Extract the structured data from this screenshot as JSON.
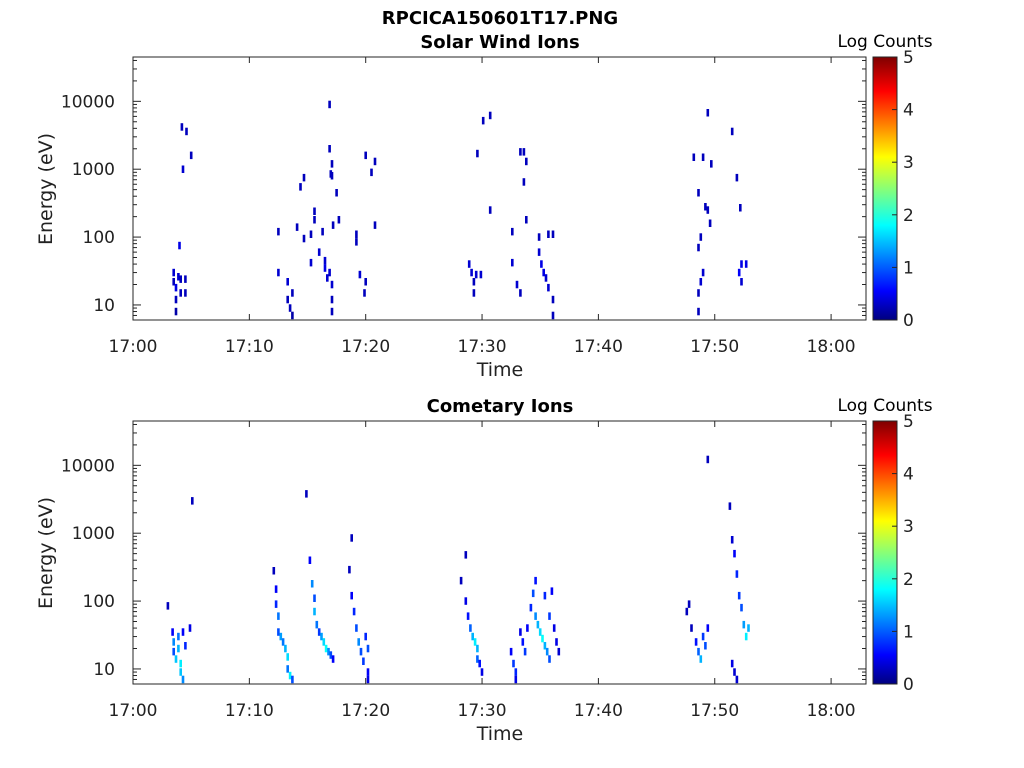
{
  "figure_title": "RPCICA150601T17.PNG",
  "chart_data": [
    {
      "type": "heatmap",
      "title": "Solar Wind Ions",
      "xlabel": "Time",
      "ylabel": "Energy (eV)",
      "x_ticks": [
        "17:00",
        "17:10",
        "17:20",
        "17:30",
        "17:40",
        "17:50",
        "18:00"
      ],
      "y_ticks": [
        "10",
        "100",
        "1000",
        "10000"
      ],
      "y_scale": "log",
      "ylim": [
        6,
        45000
      ],
      "xlim_minutes": [
        0,
        63
      ],
      "colorbar": {
        "label": "Log Counts",
        "ticks": [
          "0",
          "1",
          "2",
          "3",
          "4",
          "5"
        ],
        "range": [
          0,
          5
        ],
        "colormap": "jet"
      },
      "cells": [
        {
          "t": 3.5,
          "e": 30,
          "v": 0.4
        },
        {
          "t": 3.5,
          "e": 22,
          "v": 0.3
        },
        {
          "t": 3.7,
          "e": 18,
          "v": 0.5
        },
        {
          "t": 3.7,
          "e": 12,
          "v": 0.3
        },
        {
          "t": 3.7,
          "e": 8,
          "v": 0.2
        },
        {
          "t": 3.9,
          "e": 26,
          "v": 0.4
        },
        {
          "t": 4.1,
          "e": 24,
          "v": 0.3
        },
        {
          "t": 4.1,
          "e": 15,
          "v": 0.3
        },
        {
          "t": 4.5,
          "e": 24,
          "v": 0.3
        },
        {
          "t": 4.5,
          "e": 15,
          "v": 0.3
        },
        {
          "t": 4.0,
          "e": 75,
          "v": 0.5
        },
        {
          "t": 4.2,
          "e": 4200,
          "v": 0.3
        },
        {
          "t": 4.6,
          "e": 3600,
          "v": 0.3
        },
        {
          "t": 5.0,
          "e": 1600,
          "v": 0.3
        },
        {
          "t": 4.3,
          "e": 1000,
          "v": 0.4
        },
        {
          "t": 12.5,
          "e": 120,
          "v": 0.3
        },
        {
          "t": 12.5,
          "e": 30,
          "v": 0.4
        },
        {
          "t": 13.3,
          "e": 22,
          "v": 0.4
        },
        {
          "t": 13.3,
          "e": 12,
          "v": 0.3
        },
        {
          "t": 13.5,
          "e": 9,
          "v": 0.3
        },
        {
          "t": 13.7,
          "e": 15,
          "v": 0.3
        },
        {
          "t": 13.7,
          "e": 7,
          "v": 0.2
        },
        {
          "t": 14.1,
          "e": 140,
          "v": 0.3
        },
        {
          "t": 14.4,
          "e": 550,
          "v": 0.3
        },
        {
          "t": 14.7,
          "e": 750,
          "v": 0.3
        },
        {
          "t": 14.7,
          "e": 95,
          "v": 0.3
        },
        {
          "t": 15.3,
          "e": 110,
          "v": 0.3
        },
        {
          "t": 15.3,
          "e": 42,
          "v": 0.4
        },
        {
          "t": 15.6,
          "e": 180,
          "v": 0.3
        },
        {
          "t": 15.6,
          "e": 240,
          "v": 0.3
        },
        {
          "t": 16.0,
          "e": 60,
          "v": 0.4
        },
        {
          "t": 16.3,
          "e": 120,
          "v": 0.3
        },
        {
          "t": 16.5,
          "e": 45,
          "v": 0.4
        },
        {
          "t": 16.5,
          "e": 35,
          "v": 0.5
        },
        {
          "t": 16.7,
          "e": 25,
          "v": 0.4
        },
        {
          "t": 16.9,
          "e": 30,
          "v": 0.4
        },
        {
          "t": 17.1,
          "e": 20,
          "v": 0.4
        },
        {
          "t": 17.1,
          "e": 12,
          "v": 0.3
        },
        {
          "t": 17.1,
          "e": 8,
          "v": 0.3
        },
        {
          "t": 16.9,
          "e": 9000,
          "v": 0.3
        },
        {
          "t": 16.9,
          "e": 2000,
          "v": 0.3
        },
        {
          "t": 17.1,
          "e": 1200,
          "v": 0.3
        },
        {
          "t": 17.0,
          "e": 850,
          "v": 0.3
        },
        {
          "t": 17.1,
          "e": 800,
          "v": 0.3
        },
        {
          "t": 17.5,
          "e": 450,
          "v": 0.3
        },
        {
          "t": 17.2,
          "e": 150,
          "v": 0.3
        },
        {
          "t": 17.7,
          "e": 180,
          "v": 0.3
        },
        {
          "t": 19.2,
          "e": 110,
          "v": 0.3
        },
        {
          "t": 19.2,
          "e": 85,
          "v": 0.3
        },
        {
          "t": 19.5,
          "e": 28,
          "v": 0.4
        },
        {
          "t": 20.0,
          "e": 22,
          "v": 0.3
        },
        {
          "t": 19.9,
          "e": 15,
          "v": 0.3
        },
        {
          "t": 20.0,
          "e": 1600,
          "v": 0.3
        },
        {
          "t": 20.5,
          "e": 900,
          "v": 0.3
        },
        {
          "t": 20.8,
          "e": 1300,
          "v": 0.3
        },
        {
          "t": 20.8,
          "e": 150,
          "v": 0.3
        },
        {
          "t": 28.9,
          "e": 40,
          "v": 0.4
        },
        {
          "t": 29.1,
          "e": 30,
          "v": 0.4
        },
        {
          "t": 29.3,
          "e": 22,
          "v": 0.3
        },
        {
          "t": 29.3,
          "e": 15,
          "v": 0.3
        },
        {
          "t": 29.5,
          "e": 28,
          "v": 0.4
        },
        {
          "t": 29.9,
          "e": 28,
          "v": 0.4
        },
        {
          "t": 29.6,
          "e": 1700,
          "v": 0.3
        },
        {
          "t": 30.1,
          "e": 5200,
          "v": 0.3
        },
        {
          "t": 30.7,
          "e": 6200,
          "v": 0.3
        },
        {
          "t": 30.7,
          "e": 250,
          "v": 0.3
        },
        {
          "t": 32.6,
          "e": 120,
          "v": 0.3
        },
        {
          "t": 32.6,
          "e": 42,
          "v": 0.4
        },
        {
          "t": 33.0,
          "e": 20,
          "v": 0.4
        },
        {
          "t": 33.3,
          "e": 15,
          "v": 0.3
        },
        {
          "t": 33.3,
          "e": 1800,
          "v": 0.3
        },
        {
          "t": 33.6,
          "e": 1800,
          "v": 0.3
        },
        {
          "t": 33.6,
          "e": 650,
          "v": 0.3
        },
        {
          "t": 33.8,
          "e": 1300,
          "v": 0.3
        },
        {
          "t": 33.8,
          "e": 180,
          "v": 0.3
        },
        {
          "t": 34.9,
          "e": 100,
          "v": 0.3
        },
        {
          "t": 34.9,
          "e": 60,
          "v": 0.4
        },
        {
          "t": 35.1,
          "e": 40,
          "v": 0.5
        },
        {
          "t": 35.3,
          "e": 30,
          "v": 0.5
        },
        {
          "t": 35.5,
          "e": 25,
          "v": 0.4
        },
        {
          "t": 35.7,
          "e": 18,
          "v": 0.4
        },
        {
          "t": 35.7,
          "e": 110,
          "v": 0.3
        },
        {
          "t": 36.1,
          "e": 110,
          "v": 0.3
        },
        {
          "t": 36.1,
          "e": 12,
          "v": 0.3
        },
        {
          "t": 36.1,
          "e": 7,
          "v": 0.3
        },
        {
          "t": 48.2,
          "e": 1500,
          "v": 0.3
        },
        {
          "t": 48.6,
          "e": 450,
          "v": 0.3
        },
        {
          "t": 48.6,
          "e": 70,
          "v": 0.3
        },
        {
          "t": 48.8,
          "e": 100,
          "v": 0.3
        },
        {
          "t": 49.0,
          "e": 30,
          "v": 0.4
        },
        {
          "t": 48.8,
          "e": 22,
          "v": 0.4
        },
        {
          "t": 48.6,
          "e": 15,
          "v": 0.3
        },
        {
          "t": 48.6,
          "e": 8,
          "v": 0.3
        },
        {
          "t": 49.0,
          "e": 1500,
          "v": 0.3
        },
        {
          "t": 49.4,
          "e": 6800,
          "v": 0.3
        },
        {
          "t": 49.2,
          "e": 280,
          "v": 0.3
        },
        {
          "t": 49.4,
          "e": 250,
          "v": 0.3
        },
        {
          "t": 49.6,
          "e": 160,
          "v": 0.3
        },
        {
          "t": 49.7,
          "e": 1200,
          "v": 0.3
        },
        {
          "t": 51.5,
          "e": 3600,
          "v": 0.3
        },
        {
          "t": 51.9,
          "e": 750,
          "v": 0.3
        },
        {
          "t": 52.2,
          "e": 270,
          "v": 0.3
        },
        {
          "t": 52.1,
          "e": 30,
          "v": 0.6
        },
        {
          "t": 52.3,
          "e": 40,
          "v": 0.5
        },
        {
          "t": 52.7,
          "e": 40,
          "v": 0.5
        },
        {
          "t": 52.3,
          "e": 22,
          "v": 0.4
        }
      ]
    },
    {
      "type": "heatmap",
      "title": "Cometary Ions",
      "xlabel": "Time",
      "ylabel": "Energy (eV)",
      "x_ticks": [
        "17:00",
        "17:10",
        "17:20",
        "17:30",
        "17:40",
        "17:50",
        "18:00"
      ],
      "y_ticks": [
        "10",
        "100",
        "1000",
        "10000"
      ],
      "y_scale": "log",
      "ylim": [
        6,
        45000
      ],
      "xlim_minutes": [
        0,
        63
      ],
      "colorbar": {
        "label": "Log Counts",
        "ticks": [
          "0",
          "1",
          "2",
          "3",
          "4",
          "5"
        ],
        "range": [
          0,
          5
        ],
        "colormap": "jet"
      },
      "cells": [
        {
          "t": 3.0,
          "e": 85,
          "v": 0.3
        },
        {
          "t": 3.4,
          "e": 35,
          "v": 0.6
        },
        {
          "t": 3.5,
          "e": 25,
          "v": 1.3
        },
        {
          "t": 3.5,
          "e": 18,
          "v": 1.0
        },
        {
          "t": 3.7,
          "e": 14,
          "v": 1.6
        },
        {
          "t": 3.9,
          "e": 30,
          "v": 1.2
        },
        {
          "t": 3.9,
          "e": 20,
          "v": 1.5
        },
        {
          "t": 4.1,
          "e": 12,
          "v": 1.8
        },
        {
          "t": 4.1,
          "e": 9,
          "v": 1.6
        },
        {
          "t": 4.3,
          "e": 7,
          "v": 1.3
        },
        {
          "t": 4.3,
          "e": 35,
          "v": 0.6
        },
        {
          "t": 4.5,
          "e": 22,
          "v": 0.8
        },
        {
          "t": 4.9,
          "e": 40,
          "v": 0.5
        },
        {
          "t": 5.1,
          "e": 3000,
          "v": 0.3
        },
        {
          "t": 12.1,
          "e": 280,
          "v": 0.3
        },
        {
          "t": 12.3,
          "e": 150,
          "v": 0.6
        },
        {
          "t": 12.3,
          "e": 90,
          "v": 0.8
        },
        {
          "t": 12.5,
          "e": 60,
          "v": 1.2
        },
        {
          "t": 12.5,
          "e": 35,
          "v": 1.0
        },
        {
          "t": 12.7,
          "e": 30,
          "v": 1.4
        },
        {
          "t": 12.9,
          "e": 25,
          "v": 1.2
        },
        {
          "t": 13.1,
          "e": 20,
          "v": 1.5
        },
        {
          "t": 13.3,
          "e": 15,
          "v": 1.7
        },
        {
          "t": 13.3,
          "e": 10,
          "v": 1.2
        },
        {
          "t": 13.5,
          "e": 8,
          "v": 1.8
        },
        {
          "t": 13.7,
          "e": 7,
          "v": 1.0
        },
        {
          "t": 14.9,
          "e": 3800,
          "v": 0.3
        },
        {
          "t": 15.2,
          "e": 400,
          "v": 0.6
        },
        {
          "t": 15.4,
          "e": 180,
          "v": 1.3
        },
        {
          "t": 15.6,
          "e": 110,
          "v": 1.0
        },
        {
          "t": 15.6,
          "e": 70,
          "v": 1.5
        },
        {
          "t": 15.8,
          "e": 45,
          "v": 1.2
        },
        {
          "t": 16.0,
          "e": 35,
          "v": 0.9
        },
        {
          "t": 16.2,
          "e": 30,
          "v": 1.4
        },
        {
          "t": 16.4,
          "e": 25,
          "v": 1.7
        },
        {
          "t": 16.6,
          "e": 20,
          "v": 1.9
        },
        {
          "t": 16.8,
          "e": 18,
          "v": 1.3
        },
        {
          "t": 17.0,
          "e": 16,
          "v": 1.0
        },
        {
          "t": 17.2,
          "e": 14,
          "v": 0.6
        },
        {
          "t": 18.6,
          "e": 290,
          "v": 0.3
        },
        {
          "t": 18.8,
          "e": 850,
          "v": 0.3
        },
        {
          "t": 18.8,
          "e": 120,
          "v": 0.6
        },
        {
          "t": 19.0,
          "e": 70,
          "v": 0.8
        },
        {
          "t": 19.2,
          "e": 40,
          "v": 1.0
        },
        {
          "t": 19.4,
          "e": 25,
          "v": 1.3
        },
        {
          "t": 19.6,
          "e": 18,
          "v": 1.0
        },
        {
          "t": 19.8,
          "e": 13,
          "v": 0.9
        },
        {
          "t": 20.0,
          "e": 30,
          "v": 0.8
        },
        {
          "t": 20.2,
          "e": 20,
          "v": 1.0
        },
        {
          "t": 20.2,
          "e": 9,
          "v": 0.6
        },
        {
          "t": 20.2,
          "e": 7,
          "v": 0.5
        },
        {
          "t": 28.2,
          "e": 200,
          "v": 0.3
        },
        {
          "t": 28.6,
          "e": 480,
          "v": 0.3
        },
        {
          "t": 28.6,
          "e": 100,
          "v": 0.5
        },
        {
          "t": 28.8,
          "e": 60,
          "v": 0.7
        },
        {
          "t": 29.0,
          "e": 40,
          "v": 1.1
        },
        {
          "t": 29.2,
          "e": 30,
          "v": 1.5
        },
        {
          "t": 29.4,
          "e": 25,
          "v": 1.8
        },
        {
          "t": 29.6,
          "e": 20,
          "v": 1.5
        },
        {
          "t": 29.6,
          "e": 14,
          "v": 1.1
        },
        {
          "t": 29.8,
          "e": 12,
          "v": 0.7
        },
        {
          "t": 30.0,
          "e": 9,
          "v": 0.5
        },
        {
          "t": 32.5,
          "e": 18,
          "v": 0.6
        },
        {
          "t": 32.7,
          "e": 12,
          "v": 0.9
        },
        {
          "t": 32.9,
          "e": 9,
          "v": 0.8
        },
        {
          "t": 32.9,
          "e": 7,
          "v": 0.5
        },
        {
          "t": 33.3,
          "e": 35,
          "v": 0.5
        },
        {
          "t": 33.5,
          "e": 25,
          "v": 0.7
        },
        {
          "t": 33.7,
          "e": 18,
          "v": 0.9
        },
        {
          "t": 33.9,
          "e": 40,
          "v": 0.6
        },
        {
          "t": 34.2,
          "e": 80,
          "v": 0.8
        },
        {
          "t": 34.4,
          "e": 130,
          "v": 1.0
        },
        {
          "t": 34.6,
          "e": 200,
          "v": 0.7
        },
        {
          "t": 34.6,
          "e": 60,
          "v": 1.3
        },
        {
          "t": 34.8,
          "e": 45,
          "v": 1.5
        },
        {
          "t": 35.0,
          "e": 35,
          "v": 1.7
        },
        {
          "t": 35.2,
          "e": 28,
          "v": 1.9
        },
        {
          "t": 35.4,
          "e": 22,
          "v": 1.5
        },
        {
          "t": 35.6,
          "e": 18,
          "v": 1.3
        },
        {
          "t": 35.8,
          "e": 14,
          "v": 1.0
        },
        {
          "t": 35.4,
          "e": 120,
          "v": 0.8
        },
        {
          "t": 35.8,
          "e": 60,
          "v": 0.9
        },
        {
          "t": 36.0,
          "e": 140,
          "v": 0.6
        },
        {
          "t": 36.2,
          "e": 40,
          "v": 0.5
        },
        {
          "t": 36.4,
          "e": 25,
          "v": 0.5
        },
        {
          "t": 36.6,
          "e": 18,
          "v": 0.4
        },
        {
          "t": 47.6,
          "e": 70,
          "v": 0.3
        },
        {
          "t": 47.8,
          "e": 90,
          "v": 0.3
        },
        {
          "t": 48.0,
          "e": 40,
          "v": 0.3
        },
        {
          "t": 48.4,
          "e": 25,
          "v": 0.7
        },
        {
          "t": 48.6,
          "e": 18,
          "v": 1.1
        },
        {
          "t": 48.8,
          "e": 14,
          "v": 1.5
        },
        {
          "t": 49.0,
          "e": 30,
          "v": 0.9
        },
        {
          "t": 49.2,
          "e": 22,
          "v": 1.0
        },
        {
          "t": 49.4,
          "e": 40,
          "v": 0.6
        },
        {
          "t": 49.4,
          "e": 12200,
          "v": 0.3
        },
        {
          "t": 51.3,
          "e": 2500,
          "v": 0.3
        },
        {
          "t": 51.5,
          "e": 800,
          "v": 0.4
        },
        {
          "t": 51.7,
          "e": 500,
          "v": 0.6
        },
        {
          "t": 51.9,
          "e": 250,
          "v": 0.8
        },
        {
          "t": 52.1,
          "e": 120,
          "v": 0.9
        },
        {
          "t": 52.3,
          "e": 80,
          "v": 1.0
        },
        {
          "t": 52.5,
          "e": 45,
          "v": 1.4
        },
        {
          "t": 52.7,
          "e": 30,
          "v": 1.8
        },
        {
          "t": 52.9,
          "e": 40,
          "v": 1.5
        },
        {
          "t": 51.5,
          "e": 12,
          "v": 0.5
        },
        {
          "t": 51.7,
          "e": 9,
          "v": 0.4
        },
        {
          "t": 51.9,
          "e": 7,
          "v": 0.4
        }
      ]
    }
  ]
}
